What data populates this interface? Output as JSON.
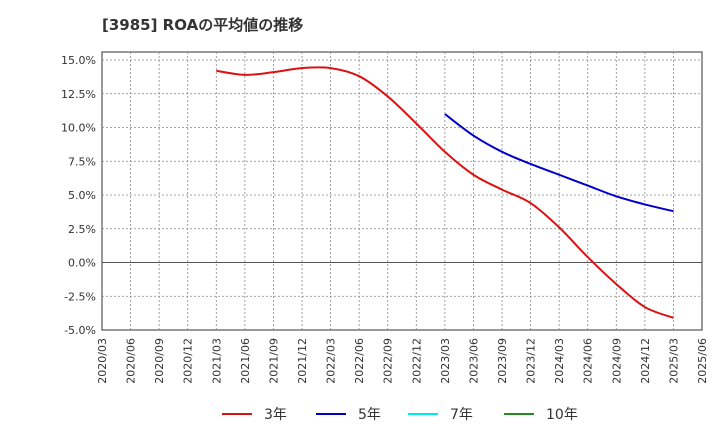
{
  "chart_data": {
    "type": "line",
    "title": "[3985]  ROAの平均値の推移",
    "xlabel": "",
    "ylabel": "",
    "x_ticks": [
      "2020/03",
      "2020/06",
      "2020/09",
      "2020/12",
      "2021/03",
      "2021/06",
      "2021/09",
      "2021/12",
      "2022/03",
      "2022/06",
      "2022/09",
      "2022/12",
      "2023/03",
      "2023/06",
      "2023/09",
      "2023/12",
      "2024/03",
      "2024/06",
      "2024/09",
      "2024/12",
      "2025/03",
      "2025/06"
    ],
    "y_ticks": [
      "15.0%",
      "12.5%",
      "10.0%",
      "7.5%",
      "5.0%",
      "2.5%",
      "0.0%",
      "-2.5%",
      "-5.0%"
    ],
    "ylim": [
      -5.0,
      15.0
    ],
    "grid": true,
    "legend_position": "bottom",
    "series": [
      {
        "name": "3年",
        "color": "#dd1111",
        "x": [
          "2021/03",
          "2021/06",
          "2021/09",
          "2021/12",
          "2022/03",
          "2022/06",
          "2022/09",
          "2022/12",
          "2023/03",
          "2023/06",
          "2023/09",
          "2023/12",
          "2024/03",
          "2024/06",
          "2024/09",
          "2024/12",
          "2025/03"
        ],
        "values": [
          14.2,
          13.9,
          14.1,
          14.4,
          14.4,
          13.8,
          12.3,
          10.3,
          8.2,
          6.5,
          5.4,
          4.4,
          2.6,
          0.4,
          -1.6,
          -3.3,
          -4.1
        ]
      },
      {
        "name": "5年",
        "color": "#0000cc",
        "x": [
          "2023/03",
          "2023/06",
          "2023/09",
          "2023/12",
          "2024/03",
          "2024/06",
          "2024/09",
          "2024/12",
          "2025/03"
        ],
        "values": [
          11.0,
          9.4,
          8.2,
          7.3,
          6.5,
          5.7,
          4.9,
          4.3,
          3.8
        ]
      },
      {
        "name": "7年",
        "color": "#00e5ff",
        "x": [],
        "values": []
      },
      {
        "name": "10年",
        "color": "#228b22",
        "x": [],
        "values": []
      }
    ]
  }
}
